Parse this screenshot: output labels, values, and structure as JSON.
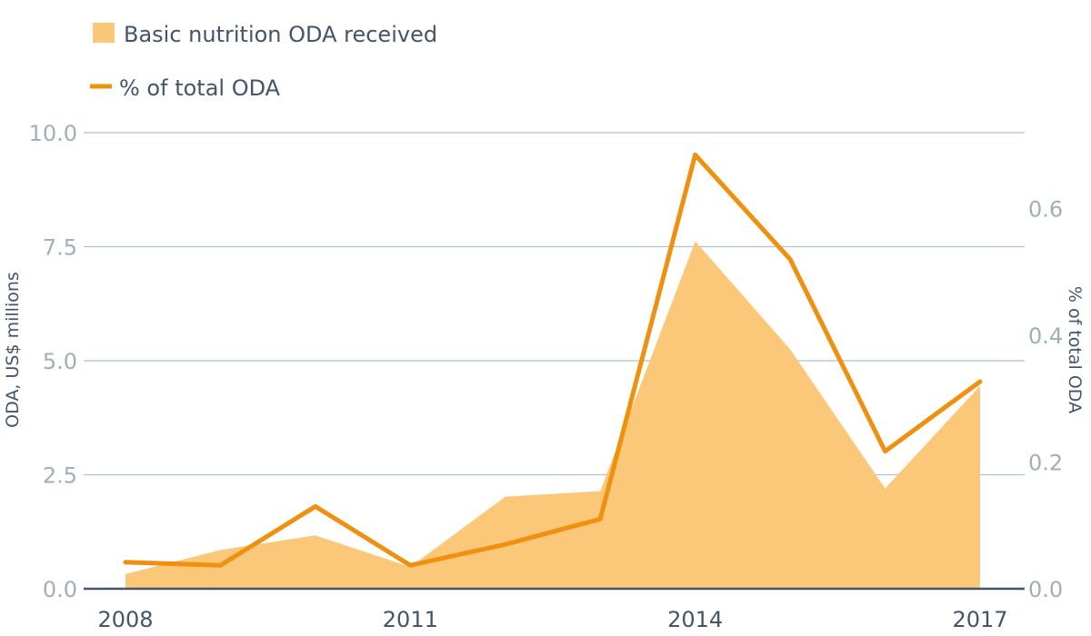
{
  "chart_data": {
    "type": "area",
    "x": [
      2008,
      2009,
      2010,
      2011,
      2012,
      2013,
      2014,
      2015,
      2016,
      2017
    ],
    "xticks": [
      "2008",
      "2011",
      "2014",
      "2017"
    ],
    "series": [
      {
        "name": "Basic nutrition ODA received",
        "type": "area",
        "axis": "left",
        "values": [
          0.32,
          0.85,
          1.17,
          0.48,
          2.02,
          2.14,
          7.62,
          5.25,
          2.2,
          4.45
        ]
      },
      {
        "name": "% of total ODA",
        "type": "line",
        "axis": "right",
        "values": [
          0.042,
          0.037,
          0.13,
          0.037,
          0.07,
          0.11,
          0.685,
          0.52,
          0.217,
          0.327
        ]
      }
    ],
    "ylabel": "ODA, US$ millions",
    "y2label": "% of total ODA",
    "ylim": [
      0,
      10
    ],
    "y2lim": [
      0,
      0.72
    ],
    "yticks": [
      "0.0",
      "2.5",
      "5.0",
      "7.5",
      "10.0"
    ],
    "y2ticks": [
      "0.0",
      "0.2",
      "0.4",
      "0.6"
    ],
    "grid": true,
    "legend_position": "top-left"
  },
  "colors": {
    "area": "#fbc87a",
    "line": "#f0900f",
    "grid": "#b5bfc6",
    "baseline": "#44546a"
  },
  "legend": {
    "area_label": "Basic nutrition ODA received",
    "line_label": "% of total ODA"
  }
}
